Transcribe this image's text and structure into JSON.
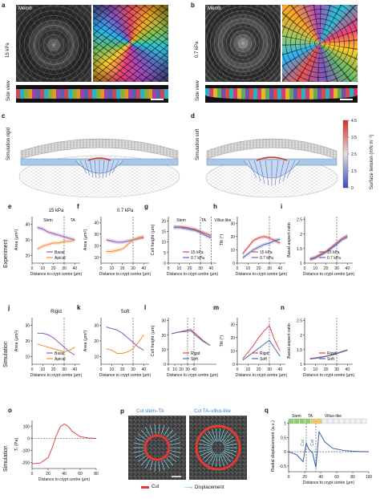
{
  "panels": {
    "a": {
      "letter": "a",
      "stain": "Memb",
      "stiffness": "15 kPa",
      "side": "Side view"
    },
    "b": {
      "letter": "b",
      "stain": "Memb",
      "stiffness": "0.7 kPa",
      "side": "Side view"
    },
    "c": {
      "letter": "c",
      "label": "Simulation rigid"
    },
    "d": {
      "letter": "d",
      "label": "Simulation soft"
    },
    "colorbar": {
      "title": "Surface tension (mN m⁻¹)",
      "ticks": [
        "0",
        "1.5",
        "2.5",
        "3.5",
        "4.5"
      ],
      "colors": {
        "low": "#3b4cc0",
        "high": "#d7301f"
      }
    }
  },
  "row_labels": {
    "experiment": "Experiment",
    "simulation1": "Simulation",
    "simulation2": "Simulation"
  },
  "common": {
    "xlabel": "Distance to crypt centre (μm)",
    "xticks": [
      "0",
      "10",
      "20",
      "30",
      "40"
    ]
  },
  "plots": {
    "e": {
      "letter": "e",
      "title": "15 kPa",
      "ylabel": "Area (μm²)",
      "yticks": [
        "20",
        "30",
        "40"
      ],
      "ann1": "Stem",
      "ann2": "TA",
      "legend": [
        "Basal",
        "Apical"
      ]
    },
    "f": {
      "letter": "f",
      "title": "0.7 kPa",
      "ylabel": "Area (μm²)",
      "yticks": [
        "10",
        "20",
        "30",
        "40"
      ]
    },
    "g": {
      "letter": "g",
      "ylabel": "Cell height (μm)",
      "yticks": [
        "0",
        "5",
        "10",
        "15",
        "20"
      ],
      "ann1": "Stem",
      "ann2": "TA",
      "ann3": "Villus-like",
      "legend": [
        "15 kPa",
        "0.7 kPa"
      ]
    },
    "h": {
      "letter": "h",
      "ylabel": "Tilt (°)",
      "yticks": [
        "0",
        "10",
        "20",
        "30"
      ],
      "legend": [
        "15 kPa",
        "0.7 kPa"
      ]
    },
    "i": {
      "letter": "i",
      "ylabel": "Basal aspect ratio",
      "yticks": [
        "1",
        "1.5",
        "2",
        "2.5"
      ],
      "legend": [
        "15 kPa",
        "0.7 kPa"
      ]
    },
    "j": {
      "letter": "j",
      "title": "Rigid",
      "ylabel": "Area (μm²)",
      "yticks": [
        "10",
        "20",
        "30"
      ],
      "legend": [
        "Basal",
        "Apical"
      ]
    },
    "k": {
      "letter": "k",
      "title": "Soft",
      "ylabel": "Area (μm²)",
      "yticks": [
        "10",
        "20",
        "30"
      ]
    },
    "l": {
      "letter": "l",
      "ylabel": "Cell height (μm)",
      "yticks": [
        "0",
        "10",
        "20",
        "30"
      ],
      "legend": [
        "Rigid",
        "Soft"
      ]
    },
    "m": {
      "letter": "m",
      "ylabel": "Tilt (°)",
      "yticks": [
        "0",
        "10",
        "20",
        "30"
      ],
      "legend": [
        "Rigid",
        "Soft"
      ]
    },
    "n": {
      "letter": "n",
      "ylabel": "Basal aspect ratio",
      "yticks": [
        "1",
        "1.5",
        "2",
        "2.5"
      ],
      "legend": [
        "Rigid",
        "Soft"
      ]
    },
    "o": {
      "letter": "o",
      "ylabel": "Tᵣ (Pa)",
      "yticks": [
        "-200",
        "-100",
        "0",
        "100"
      ],
      "xticks": [
        "0",
        "20",
        "40",
        "60",
        "80"
      ]
    },
    "p": {
      "letter": "p",
      "title1": "Cut stem–TA",
      "title2": "Cut TA–villus-like",
      "legend": [
        "Cut",
        "Displacement"
      ]
    },
    "q": {
      "letter": "q",
      "ylabel": "Radial displacement (a.u.)",
      "yticks": [
        "-0.5",
        "0",
        "0.5",
        "1"
      ],
      "xticks": [
        "0",
        "20",
        "40",
        "60",
        "80",
        "100"
      ],
      "ann1": "Stem",
      "ann2": "TA",
      "ann3": "Villus-like",
      "cut1": "Cut",
      "cut2": "Cut"
    }
  },
  "chart_data": [
    {
      "id": "e",
      "type": "line",
      "title": "15 kPa",
      "xlabel": "Distance to crypt centre (μm)",
      "ylabel": "Area (μm²)",
      "xlim": [
        0,
        45
      ],
      "ylim": [
        15,
        45
      ],
      "x": [
        5,
        10,
        15,
        20,
        25,
        30,
        35,
        40
      ],
      "series": [
        {
          "name": "Basal",
          "values": [
            38,
            37,
            35,
            34,
            33,
            32,
            31,
            30
          ]
        },
        {
          "name": "Apical",
          "values": [
            24,
            26,
            27,
            28,
            28,
            29,
            29,
            30
          ]
        }
      ]
    },
    {
      "id": "f",
      "type": "line",
      "title": "0.7 kPa",
      "xlabel": "Distance to crypt centre (μm)",
      "ylabel": "Area (μm²)",
      "xlim": [
        0,
        45
      ],
      "ylim": [
        5,
        45
      ],
      "x": [
        5,
        10,
        15,
        20,
        25,
        30,
        35,
        40
      ],
      "series": [
        {
          "name": "Basal",
          "values": [
            25,
            24,
            23,
            23,
            24,
            25,
            26,
            27
          ]
        },
        {
          "name": "Apical",
          "values": [
            15,
            15,
            16,
            17,
            21,
            25,
            27,
            28
          ]
        }
      ]
    },
    {
      "id": "g",
      "type": "line",
      "xlabel": "Distance to crypt centre (μm)",
      "ylabel": "Cell height (μm)",
      "xlim": [
        0,
        45
      ],
      "ylim": [
        0,
        22
      ],
      "x": [
        5,
        10,
        15,
        20,
        25,
        30,
        35,
        40
      ],
      "series": [
        {
          "name": "15 kPa",
          "values": [
            17,
            17,
            17,
            16.5,
            16,
            15,
            14,
            13
          ]
        },
        {
          "name": "0.7 kPa",
          "values": [
            17,
            17,
            16.5,
            16,
            15.5,
            14.5,
            13,
            12
          ]
        }
      ]
    },
    {
      "id": "h",
      "type": "line",
      "xlabel": "Distance to crypt centre (μm)",
      "ylabel": "Tilt (°)",
      "xlim": [
        0,
        45
      ],
      "ylim": [
        0,
        35
      ],
      "x": [
        5,
        10,
        15,
        20,
        25,
        30,
        35,
        40
      ],
      "series": [
        {
          "name": "15 kPa",
          "values": [
            7,
            12,
            17,
            19,
            20,
            19,
            17,
            15
          ]
        },
        {
          "name": "0.7 kPa",
          "values": [
            4,
            7,
            10,
            12,
            14,
            15,
            17,
            18
          ]
        }
      ]
    },
    {
      "id": "i",
      "type": "line",
      "xlabel": "Distance to crypt centre (μm)",
      "ylabel": "Basal aspect ratio",
      "xlim": [
        0,
        45
      ],
      "ylim": [
        1,
        2.6
      ],
      "x": [
        5,
        10,
        15,
        20,
        25,
        30,
        35,
        40
      ],
      "series": [
        {
          "name": "15 kPa",
          "values": [
            1.15,
            1.2,
            1.3,
            1.4,
            1.55,
            1.7,
            1.85,
            1.95
          ]
        },
        {
          "name": "0.7 kPa",
          "values": [
            1.12,
            1.18,
            1.28,
            1.38,
            1.5,
            1.65,
            1.8,
            1.9
          ]
        }
      ]
    },
    {
      "id": "j",
      "type": "line",
      "title": "Rigid",
      "xlabel": "Distance to crypt centre (μm)",
      "ylabel": "Area (μm²)",
      "xlim": [
        0,
        45
      ],
      "ylim": [
        5,
        35
      ],
      "x": [
        5,
        10,
        15,
        20,
        25,
        30,
        35,
        40
      ],
      "series": [
        {
          "name": "Basal",
          "values": [
            25,
            25,
            24,
            22,
            19,
            16,
            13,
            11
          ]
        },
        {
          "name": "Apical",
          "values": [
            18,
            17,
            16,
            15,
            14,
            13,
            14,
            16
          ]
        }
      ]
    },
    {
      "id": "k",
      "type": "line",
      "title": "Soft",
      "xlabel": "Distance to crypt centre (μm)",
      "ylabel": "Area (μm²)",
      "xlim": [
        0,
        45
      ],
      "ylim": [
        5,
        35
      ],
      "x": [
        5,
        10,
        15,
        20,
        25,
        30,
        35,
        40
      ],
      "series": [
        {
          "name": "Basal",
          "values": [
            29,
            28,
            27,
            25,
            22,
            19,
            16,
            14
          ]
        },
        {
          "name": "Apical",
          "values": [
            15,
            14,
            12,
            12,
            13,
            15,
            19,
            24
          ]
        }
      ]
    },
    {
      "id": "l",
      "type": "line",
      "xlabel": "Distance to crypt centre (μm)",
      "ylabel": "Cell height (μm)",
      "xlim": [
        0,
        75
      ],
      "ylim": [
        0,
        32
      ],
      "x": [
        5,
        15,
        25,
        35,
        45,
        55,
        65
      ],
      "series": [
        {
          "name": "Rigid",
          "values": [
            21,
            22,
            23,
            24,
            20,
            16,
            13
          ]
        },
        {
          "name": "Soft",
          "values": [
            21,
            22,
            22.5,
            23,
            19,
            15.5,
            13
          ]
        }
      ]
    },
    {
      "id": "m",
      "type": "line",
      "xlabel": "Distance to crypt centre (μm)",
      "ylabel": "Tilt (°)",
      "xlim": [
        0,
        45
      ],
      "ylim": [
        0,
        35
      ],
      "x": [
        5,
        10,
        15,
        20,
        25,
        30,
        35,
        40
      ],
      "series": [
        {
          "name": "Rigid",
          "values": [
            4,
            9,
            14,
            20,
            25,
            29,
            18,
            10
          ]
        },
        {
          "name": "Soft",
          "values": [
            3,
            6,
            9,
            12,
            15,
            18,
            12,
            6
          ]
        }
      ]
    },
    {
      "id": "n",
      "type": "line",
      "xlabel": "Distance to crypt centre (μm)",
      "ylabel": "Basal aspect ratio",
      "xlim": [
        0,
        45
      ],
      "ylim": [
        1,
        2.6
      ],
      "x": [
        5,
        10,
        15,
        20,
        25,
        30,
        35,
        40
      ],
      "series": [
        {
          "name": "Rigid",
          "values": [
            1.2,
            1.22,
            1.25,
            1.28,
            1.32,
            1.38,
            1.44,
            1.5
          ]
        },
        {
          "name": "Soft",
          "values": [
            1.18,
            1.2,
            1.23,
            1.27,
            1.31,
            1.36,
            1.42,
            1.48
          ]
        }
      ]
    },
    {
      "id": "o",
      "type": "line",
      "xlabel": "Distance to crypt centre (μm)",
      "ylabel": "Tᵣ (Pa)",
      "xlim": [
        0,
        80
      ],
      "ylim": [
        -250,
        150
      ],
      "x": [
        0,
        10,
        20,
        25,
        30,
        35,
        40,
        45,
        50,
        60,
        70,
        80
      ],
      "series": [
        {
          "values": [
            -210,
            -205,
            -160,
            -80,
            20,
            95,
            120,
            100,
            60,
            15,
            3,
            0
          ]
        }
      ]
    },
    {
      "id": "q",
      "type": "line",
      "xlabel": "Distance to crypt centre (μm)",
      "ylabel": "Radial displacement (a.u.)",
      "xlim": [
        0,
        100
      ],
      "ylim": [
        -0.7,
        1.1
      ],
      "x": [
        0,
        10,
        18,
        22,
        25,
        30,
        34,
        38,
        45,
        55,
        70,
        85,
        100
      ],
      "series": [
        {
          "values": [
            0,
            -0.1,
            -0.35,
            0.3,
            0.1,
            -0.05,
            -0.55,
            0.7,
            0.35,
            0.12,
            0.04,
            0.01,
            0
          ]
        }
      ]
    }
  ]
}
